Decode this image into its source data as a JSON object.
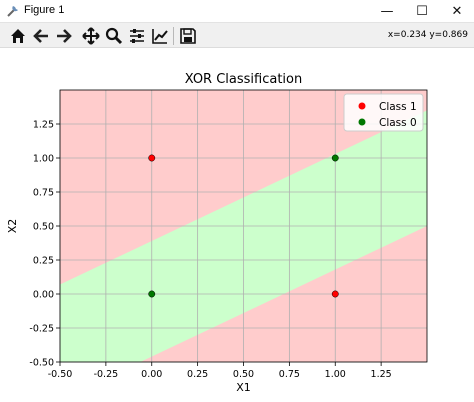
{
  "window": {
    "title": "Figure 1",
    "minimize_glyph": "—",
    "maximize_glyph": "☐",
    "close_glyph": "✕"
  },
  "toolbar": {
    "tools": [
      {
        "name": "home-icon"
      },
      {
        "name": "back-icon"
      },
      {
        "name": "forward-icon"
      },
      {
        "name": "pan-icon"
      },
      {
        "name": "zoom-icon"
      },
      {
        "name": "configure-subplots-icon"
      },
      {
        "name": "edit-axis-icon"
      },
      {
        "name": "save-icon"
      }
    ],
    "coordinates": "x=0.234  y=0.869"
  },
  "colors": {
    "region_class1": "#ffcccc",
    "region_class0": "#ccffcc",
    "class1_point": "#ff0000",
    "class0_point": "#007700",
    "grid": "#b0b0b0"
  },
  "chart_data": {
    "type": "scatter",
    "title": "XOR Classification",
    "xlabel": "X1",
    "ylabel": "X2",
    "xlim": [
      -0.5,
      1.5
    ],
    "ylim": [
      -0.5,
      1.5
    ],
    "xticks": [
      "-0.50",
      "-0.25",
      "0.00",
      "0.25",
      "0.50",
      "0.75",
      "1.00",
      "1.25"
    ],
    "xtick_values": [
      -0.5,
      -0.25,
      0,
      0.25,
      0.5,
      0.75,
      1.0,
      1.25
    ],
    "yticks": [
      "-0.50",
      "-0.25",
      "0.00",
      "0.25",
      "0.50",
      "0.75",
      "1.00",
      "1.25"
    ],
    "ytick_values": [
      -0.5,
      -0.25,
      0,
      0.25,
      0.5,
      0.75,
      1.0,
      1.25
    ],
    "grid": true,
    "legend_position": "top-right",
    "decision_region": {
      "class0_band": {
        "slope": 0.64,
        "lower_intercept": -0.46,
        "upper_intercept": 0.39
      },
      "inside_label": "Class 0",
      "outside_label": "Class 1"
    },
    "series": [
      {
        "name": "Class 1",
        "color": "#ff0000",
        "points": [
          [
            0,
            1
          ],
          [
            1,
            0
          ]
        ]
      },
      {
        "name": "Class 0",
        "color": "#007700",
        "points": [
          [
            0,
            0
          ],
          [
            1,
            1
          ]
        ]
      }
    ]
  }
}
